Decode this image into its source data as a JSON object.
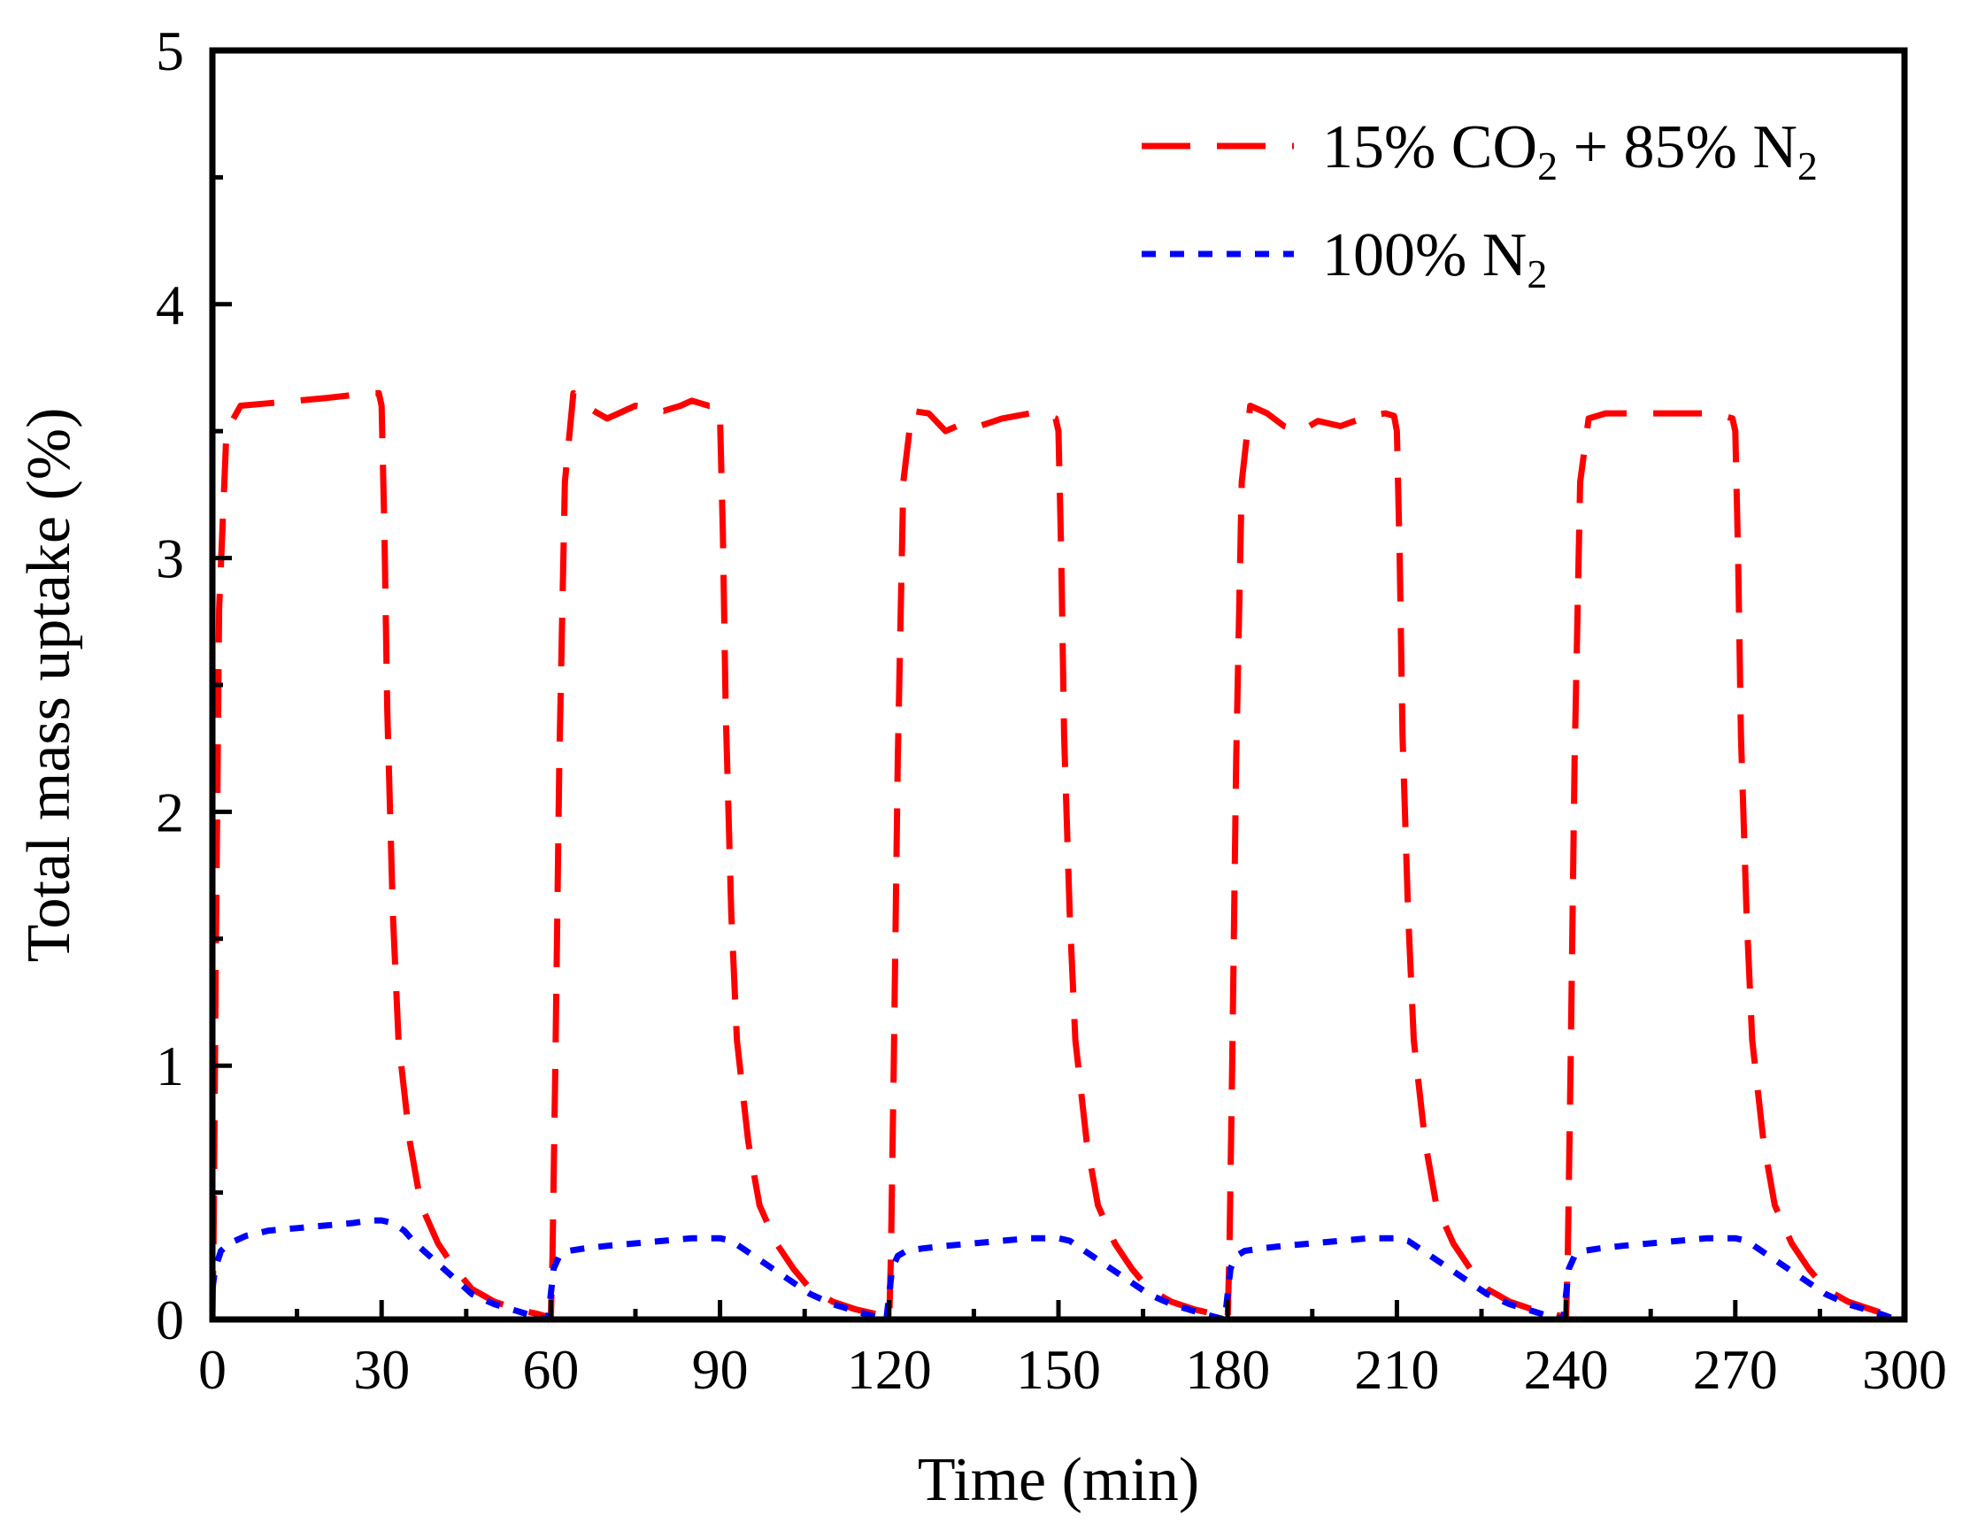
{
  "chart_data": {
    "type": "line",
    "title": "",
    "xlabel": "Time (min)",
    "ylabel": "Total mass uptake (%)",
    "xlim": [
      0,
      300
    ],
    "ylim": [
      0,
      5
    ],
    "xticks": [
      0,
      30,
      60,
      90,
      120,
      150,
      180,
      210,
      240,
      270,
      300
    ],
    "yticks": [
      0,
      1,
      2,
      3,
      4,
      5
    ],
    "grid": false,
    "legend_position": "top-right",
    "series": [
      {
        "name": "15% CO2 + 85% N2",
        "legend": {
          "main": "15% CO",
          "sub1": "2",
          "mid": " + 85% N",
          "sub2": "2"
        },
        "color": "#ff0000",
        "style": "dashed",
        "x": [
          0,
          0.2,
          0.6,
          1.2,
          2.5,
          5,
          10,
          20,
          28,
          29.5,
          30,
          30.5,
          31,
          32,
          33,
          35,
          37,
          40,
          43,
          46,
          50,
          54,
          58,
          59.5,
          60,
          60.3,
          60.8,
          61.5,
          62.5,
          64,
          66,
          70,
          75,
          80,
          83,
          85,
          88,
          89.5,
          90,
          90.5,
          91,
          92,
          93,
          95,
          97,
          100,
          103,
          106,
          110,
          114,
          118,
          119.5,
          120,
          120.3,
          120.8,
          121.5,
          122.5,
          124,
          127,
          130,
          133,
          136,
          140,
          145,
          148,
          149.5,
          150,
          150.5,
          151,
          152,
          153,
          155,
          157,
          160,
          163,
          166,
          170,
          174,
          178,
          179.5,
          180,
          180.3,
          180.8,
          181.5,
          182.5,
          184,
          187,
          190,
          193,
          196,
          200,
          205,
          208,
          209.5,
          210,
          210.5,
          211,
          212,
          213,
          215,
          217,
          220,
          223,
          226,
          230,
          234,
          238,
          239.5,
          240,
          240.3,
          240.8,
          241.5,
          242.5,
          244,
          247,
          250,
          255,
          260,
          265,
          268,
          269.5,
          270,
          270.5,
          271,
          272,
          273,
          275,
          277,
          280,
          283,
          286,
          290,
          294,
          298
        ],
        "y": [
          0,
          0.3,
          1.4,
          2.8,
          3.5,
          3.6,
          3.61,
          3.63,
          3.65,
          3.65,
          3.6,
          3.1,
          2.4,
          1.6,
          1.1,
          0.7,
          0.45,
          0.3,
          0.2,
          0.12,
          0.07,
          0.04,
          0.02,
          0.01,
          0,
          0.25,
          1.0,
          2.2,
          3.3,
          3.65,
          3.6,
          3.55,
          3.6,
          3.58,
          3.6,
          3.62,
          3.6,
          3.6,
          3.55,
          3.1,
          2.4,
          1.6,
          1.1,
          0.7,
          0.45,
          0.3,
          0.2,
          0.12,
          0.07,
          0.04,
          0.02,
          0.01,
          0,
          0.25,
          1.0,
          2.2,
          3.3,
          3.58,
          3.57,
          3.5,
          3.53,
          3.52,
          3.55,
          3.57,
          3.56,
          3.55,
          3.5,
          3.0,
          2.3,
          1.6,
          1.1,
          0.7,
          0.45,
          0.3,
          0.2,
          0.12,
          0.07,
          0.04,
          0.02,
          0.01,
          0,
          0.25,
          1.0,
          2.2,
          3.3,
          3.6,
          3.57,
          3.52,
          3.5,
          3.54,
          3.52,
          3.56,
          3.57,
          3.56,
          3.5,
          3.0,
          2.3,
          1.6,
          1.1,
          0.7,
          0.45,
          0.3,
          0.2,
          0.12,
          0.07,
          0.04,
          0.02,
          0.01,
          0,
          0.25,
          1.0,
          2.2,
          3.3,
          3.55,
          3.57,
          3.57,
          3.57,
          3.57,
          3.57,
          3.56,
          3.55,
          3.5,
          3.0,
          2.3,
          1.6,
          1.1,
          0.7,
          0.45,
          0.3,
          0.2,
          0.12,
          0.07,
          0.04,
          0.01
        ]
      },
      {
        "name": "100% N2",
        "legend": {
          "main": "100% N",
          "sub1": "2",
          "mid": "",
          "sub2": ""
        },
        "color": "#0000ff",
        "style": "dotted",
        "x": [
          0,
          0.5,
          1.5,
          3,
          6,
          10,
          15,
          20,
          25,
          28,
          30,
          32,
          34,
          36,
          38,
          40,
          42,
          44,
          46,
          48,
          50,
          53,
          56,
          59.5,
          60,
          60.5,
          61.5,
          63,
          66,
          70,
          75,
          80,
          85,
          88,
          90,
          92,
          94,
          96,
          98,
          100,
          102,
          104,
          106,
          108,
          110,
          113,
          116,
          119.5,
          120,
          120.5,
          121.5,
          123,
          126,
          130,
          135,
          140,
          145,
          148,
          150,
          152,
          154,
          156,
          158,
          160,
          162,
          164,
          166,
          168,
          170,
          173,
          176,
          179.5,
          180,
          180.5,
          181.5,
          183,
          186,
          190,
          195,
          200,
          205,
          208,
          210,
          212,
          214,
          216,
          218,
          220,
          222,
          224,
          226,
          228,
          230,
          233,
          236,
          239.5,
          240,
          240.5,
          241.5,
          243,
          246,
          250,
          255,
          260,
          265,
          268,
          270,
          272,
          274,
          276,
          278,
          280,
          282,
          284,
          286,
          288,
          290,
          293,
          296,
          298.5
        ],
        "y": [
          0.12,
          0.2,
          0.27,
          0.3,
          0.33,
          0.35,
          0.36,
          0.37,
          0.38,
          0.39,
          0.39,
          0.38,
          0.35,
          0.3,
          0.26,
          0.22,
          0.18,
          0.14,
          0.1,
          0.08,
          0.06,
          0.04,
          0.02,
          0,
          0.1,
          0.2,
          0.25,
          0.27,
          0.28,
          0.29,
          0.3,
          0.31,
          0.32,
          0.32,
          0.32,
          0.31,
          0.28,
          0.25,
          0.22,
          0.19,
          0.16,
          0.13,
          0.1,
          0.08,
          0.06,
          0.04,
          0.02,
          0,
          0.1,
          0.2,
          0.25,
          0.27,
          0.28,
          0.29,
          0.3,
          0.31,
          0.32,
          0.32,
          0.32,
          0.31,
          0.28,
          0.25,
          0.22,
          0.19,
          0.16,
          0.13,
          0.1,
          0.08,
          0.06,
          0.04,
          0.02,
          0,
          0.1,
          0.2,
          0.25,
          0.27,
          0.28,
          0.29,
          0.3,
          0.31,
          0.32,
          0.32,
          0.32,
          0.31,
          0.28,
          0.25,
          0.22,
          0.19,
          0.16,
          0.13,
          0.1,
          0.08,
          0.06,
          0.04,
          0.02,
          0,
          0.1,
          0.2,
          0.25,
          0.27,
          0.28,
          0.29,
          0.3,
          0.31,
          0.32,
          0.32,
          0.32,
          0.31,
          0.28,
          0.25,
          0.22,
          0.19,
          0.16,
          0.13,
          0.1,
          0.08,
          0.06,
          0.04,
          0.02,
          0
        ]
      }
    ]
  }
}
